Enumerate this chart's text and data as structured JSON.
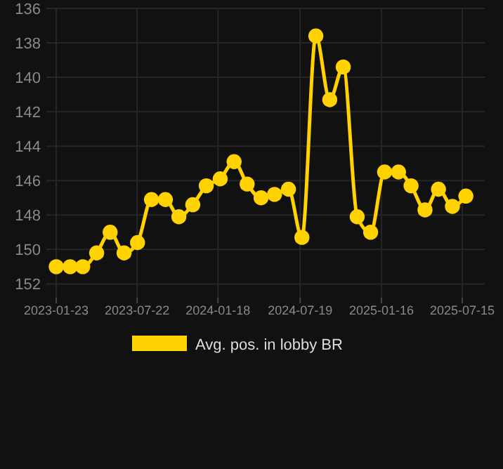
{
  "chart_data": {
    "type": "line",
    "x": [
      "2023-01-23",
      "2023-02-23",
      "2023-03-23",
      "2023-04-23",
      "2023-05-23",
      "2023-06-23",
      "2023-07-23",
      "2023-08-23",
      "2023-09-23",
      "2023-10-23",
      "2023-11-23",
      "2023-12-23",
      "2024-01-23",
      "2024-02-23",
      "2024-03-23",
      "2024-04-23",
      "2024-05-23",
      "2024-06-23",
      "2024-07-23",
      "2024-08-23",
      "2024-09-23",
      "2024-10-23",
      "2024-11-23",
      "2024-12-23",
      "2025-01-23",
      "2025-02-23",
      "2025-03-23",
      "2025-04-23",
      "2025-05-23",
      "2025-06-23",
      "2025-07-23"
    ],
    "series": [
      {
        "name": "Avg. pos. in lobby BR",
        "color": "#ffd200",
        "values": [
          151,
          151,
          151,
          150.2,
          149,
          150.2,
          149.6,
          147.1,
          147.1,
          148.1,
          147.4,
          146.3,
          145.9,
          144.9,
          146.2,
          147,
          146.8,
          146.5,
          149.3,
          137.6,
          141.3,
          139.4,
          148.1,
          149,
          145.5,
          145.5,
          146.3,
          147.7,
          146.5,
          147.5,
          146.9
        ]
      }
    ],
    "xlim": [
      "2023-01-01",
      "2025-09-03"
    ],
    "xticks": [
      {
        "value": "2023-01-23",
        "label": "2023-01-23"
      },
      {
        "value": "2023-07-22",
        "label": "2023-07-22"
      },
      {
        "value": "2024-01-18",
        "label": "2024-01-18"
      },
      {
        "value": "2024-07-19",
        "label": "2024-07-19"
      },
      {
        "value": "2025-01-16",
        "label": "2025-01-16"
      },
      {
        "value": "2025-07-15",
        "label": "2025-07-15"
      }
    ],
    "ylim": [
      152.8,
      136
    ],
    "yticks": [
      136,
      138,
      140,
      142,
      144,
      146,
      148,
      150,
      152
    ],
    "grid": true,
    "legend": "bottom",
    "marker": "circle",
    "line_style": "solid"
  }
}
